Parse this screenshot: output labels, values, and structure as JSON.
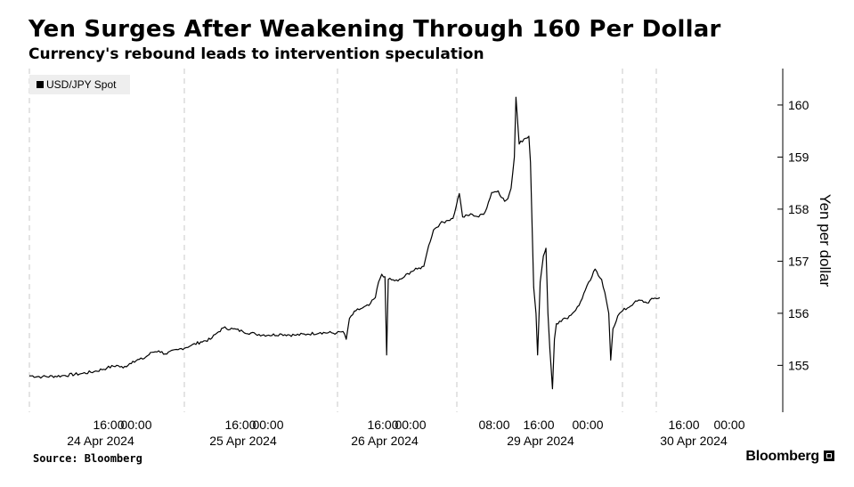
{
  "title": "Yen Surges After Weakening Through 160 Per Dollar",
  "subtitle": "Currency's rebound leads to intervention speculation",
  "source": "Source: Bloomberg",
  "brand": "Bloomberg",
  "chart_data": {
    "type": "line",
    "title": "Yen Surges After Weakening Through 160 Per Dollar",
    "subtitle": "Currency's rebound leads to intervention speculation",
    "ylabel": "Yen per dollar",
    "ylim": [
      154.1,
      160.7
    ],
    "yticks": [
      155,
      156,
      157,
      158,
      159,
      160
    ],
    "y_axis_side": "right",
    "grid": "vertical dashed lines at day boundaries",
    "legend": {
      "placement": "top-left",
      "entries": [
        "USD/JPY Spot"
      ]
    },
    "x_time_labels": [
      "16:00",
      "00:00",
      "16:00",
      "00:00",
      "16:00",
      "00:00",
      "08:00",
      "16:00",
      "00:00",
      "16:00",
      "00:00"
    ],
    "x_date_labels": [
      "24 Apr 2024",
      "25 Apr 2024",
      "26 Apr 2024",
      "29 Apr 2024",
      "30 Apr 2024"
    ],
    "series": [
      {
        "name": "USD/JPY Spot",
        "color": "#000000",
        "points": [
          [
            0,
            154.8
          ],
          [
            4,
            154.78
          ],
          [
            10,
            154.8
          ],
          [
            16,
            154.84
          ],
          [
            20,
            154.88
          ],
          [
            24,
            154.95
          ],
          [
            27,
            155.0
          ],
          [
            29,
            154.95
          ],
          [
            32,
            155.08
          ],
          [
            35,
            155.12
          ],
          [
            38,
            155.25
          ],
          [
            40,
            155.28
          ],
          [
            42,
            155.22
          ],
          [
            46,
            155.3
          ],
          [
            50,
            155.38
          ],
          [
            53,
            155.45
          ],
          [
            56,
            155.5
          ],
          [
            58,
            155.62
          ],
          [
            60,
            155.72
          ],
          [
            63,
            155.7
          ],
          [
            66,
            155.65
          ],
          [
            70,
            155.6
          ],
          [
            74,
            155.58
          ],
          [
            78,
            155.6
          ],
          [
            82,
            155.58
          ],
          [
            86,
            155.6
          ],
          [
            90,
            155.63
          ],
          [
            95,
            155.62
          ],
          [
            97,
            155.65
          ],
          [
            98,
            155.5
          ],
          [
            99,
            155.9
          ],
          [
            101,
            156.05
          ],
          [
            103,
            156.1
          ],
          [
            105,
            156.15
          ],
          [
            107,
            156.3
          ],
          [
            108,
            156.6
          ],
          [
            109,
            156.75
          ],
          [
            110,
            156.7
          ],
          [
            110.5,
            155.2
          ],
          [
            111,
            156.65
          ],
          [
            114,
            156.62
          ],
          [
            116,
            156.7
          ],
          [
            118,
            156.8
          ],
          [
            120,
            156.85
          ],
          [
            122,
            156.9
          ],
          [
            123.5,
            157.3
          ],
          [
            125,
            157.6
          ],
          [
            127,
            157.72
          ],
          [
            129,
            157.78
          ],
          [
            131,
            157.82
          ],
          [
            132,
            158.05
          ],
          [
            133,
            158.3
          ],
          [
            134,
            157.85
          ],
          [
            137,
            157.9
          ],
          [
            139,
            157.85
          ],
          [
            141,
            157.95
          ],
          [
            143,
            158.32
          ],
          [
            145,
            158.35
          ],
          [
            147,
            158.15
          ],
          [
            148,
            158.2
          ],
          [
            149,
            158.4
          ],
          [
            150,
            159.0
          ],
          [
            150.5,
            160.15
          ],
          [
            151,
            159.7
          ],
          [
            151.5,
            159.25
          ],
          [
            153,
            159.35
          ],
          [
            154.5,
            159.4
          ],
          [
            155,
            158.9
          ],
          [
            155.5,
            157.7
          ],
          [
            156,
            156.5
          ],
          [
            156.7,
            156.0
          ],
          [
            157.2,
            155.2
          ],
          [
            158,
            156.6
          ],
          [
            159,
            157.1
          ],
          [
            159.8,
            157.25
          ],
          [
            160.4,
            156.0
          ],
          [
            161,
            155.3
          ],
          [
            161.8,
            154.55
          ],
          [
            162.4,
            155.5
          ],
          [
            163,
            155.8
          ],
          [
            164,
            155.85
          ],
          [
            166,
            155.9
          ],
          [
            168,
            156.0
          ],
          [
            170,
            156.15
          ],
          [
            172,
            156.45
          ],
          [
            174,
            156.7
          ],
          [
            175,
            156.85
          ],
          [
            176,
            156.72
          ],
          [
            177,
            156.65
          ],
          [
            178,
            156.4
          ],
          [
            179.2,
            156.0
          ],
          [
            179.8,
            155.1
          ],
          [
            180.5,
            155.7
          ],
          [
            182,
            155.95
          ],
          [
            183.5,
            156.05
          ],
          [
            185,
            156.1
          ],
          [
            187,
            156.2
          ],
          [
            189,
            156.25
          ],
          [
            191,
            156.2
          ],
          [
            193,
            156.28
          ],
          [
            195,
            156.3
          ]
        ]
      }
    ]
  }
}
